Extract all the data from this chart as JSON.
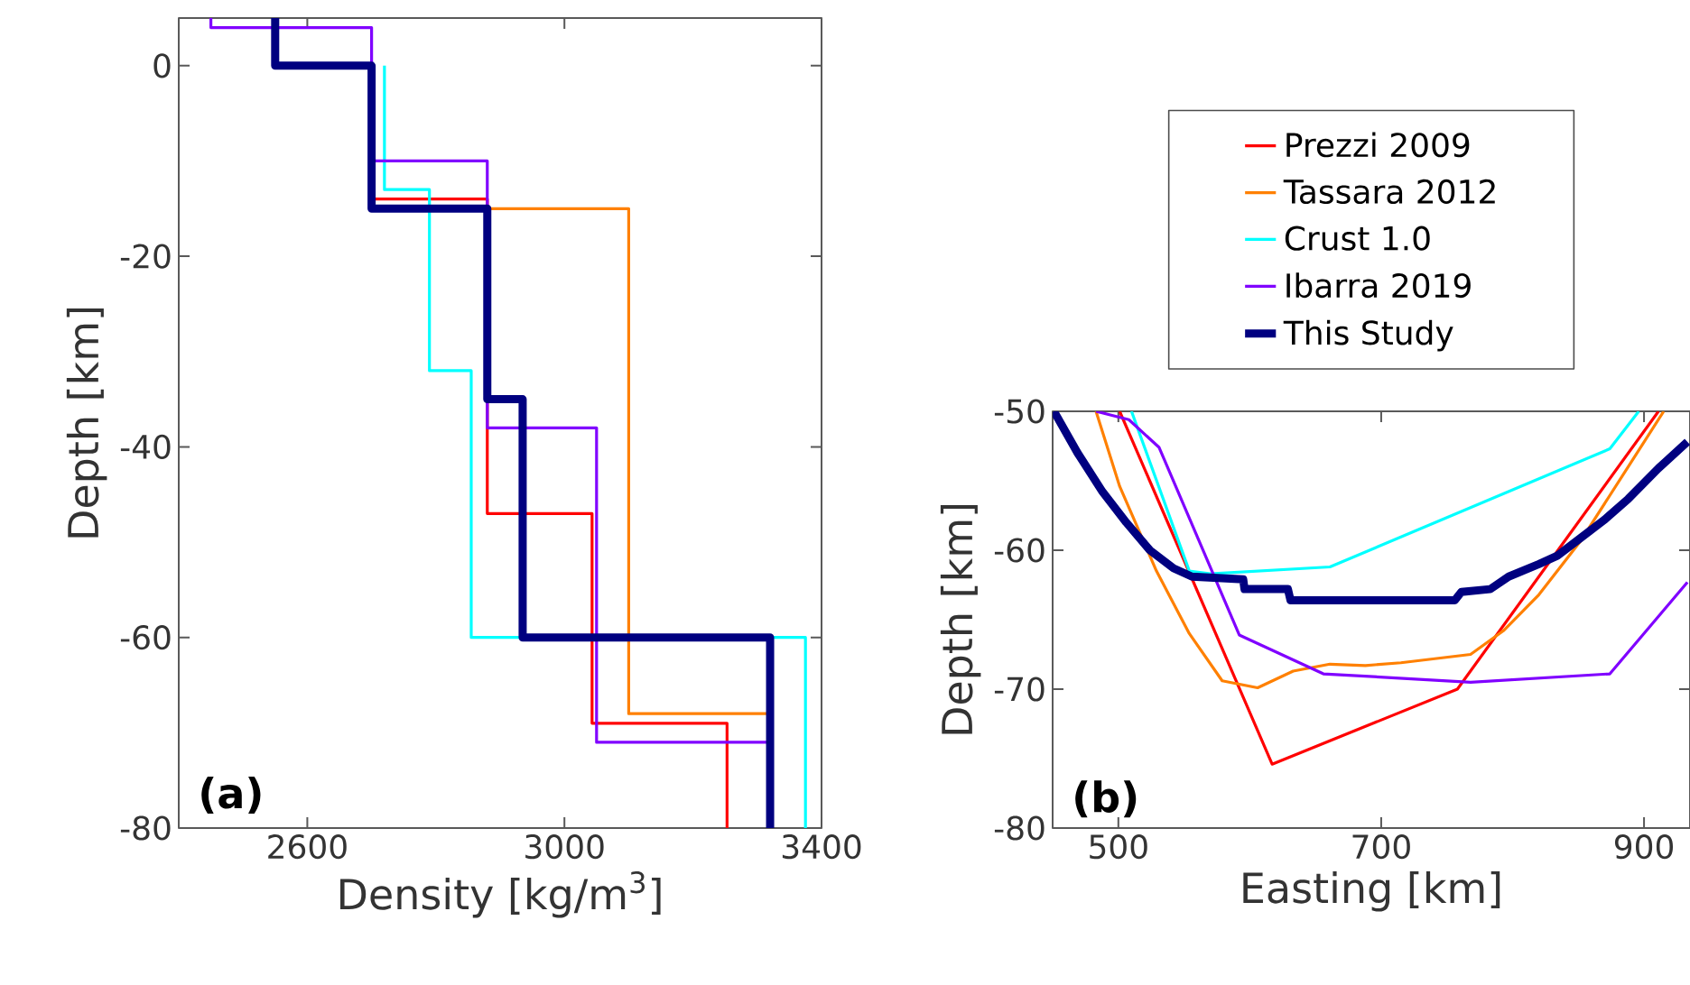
{
  "chart_data": [
    {
      "type": "line",
      "xlabel": "Density [kg/m$^{3}$]",
      "ylabel": "Depth [km]",
      "xlim": [
        2400,
        3400
      ],
      "ylim": [
        -80,
        5
      ],
      "xticks": [
        2600,
        3000,
        3400
      ],
      "yticks": [
        -80,
        -60,
        -40,
        -20,
        0
      ],
      "annotations": [
        "(a)"
      ],
      "grid": false,
      "legend": false,
      "marker": "none",
      "line_style": "solid",
      "series": [
        {
          "color": "#ff0000",
          "x": [
            2700,
            2880,
            2880,
            3043,
            3043,
            3253,
            3253
          ],
          "values": [
            -14,
            -14,
            -47,
            -47,
            -69,
            -69,
            -80
          ]
        },
        {
          "color": "#ff8000",
          "x": [
            2880,
            3100,
            3100,
            3320
          ],
          "values": [
            -15,
            -15,
            -68,
            -68
          ]
        },
        {
          "color": "#00ffff",
          "x": [
            2720,
            2720,
            2790,
            2790,
            2855,
            2855,
            3375,
            3375
          ],
          "values": [
            0,
            -13,
            -13,
            -32,
            -32,
            -60,
            -60,
            -80
          ]
        },
        {
          "color": "#8000ff",
          "x": [
            2450,
            2450,
            2700,
            2700,
            2880,
            2880,
            3050,
            3050,
            3320
          ],
          "values": [
            5,
            4,
            4,
            -10,
            -10,
            -38,
            -38,
            -71,
            -71
          ]
        },
        {
          "color": "#000080",
          "x": [
            2550,
            2550,
            2700,
            2700,
            2880,
            2880,
            2935,
            2935,
            3320,
            3320
          ],
          "values": [
            5,
            0,
            0,
            -15,
            -15,
            -35,
            -35,
            -60,
            -60,
            -80
          ]
        }
      ]
    },
    {
      "type": "line",
      "xlabel": "Easting [km]",
      "ylabel": "Depth [km]",
      "xlim": [
        450,
        935
      ],
      "ylim": [
        -80,
        -50
      ],
      "xticks": [
        500,
        700,
        900
      ],
      "yticks": [
        -80,
        -70,
        -60,
        -50
      ],
      "annotations": [
        "(b)"
      ],
      "grid": false,
      "legend": "top",
      "marker": "none",
      "line_style": "solid",
      "series": [
        {
          "name": "Prezzi 2009",
          "color": "#ff0000",
          "x": [
            501,
            617,
            758,
            911
          ],
          "values": [
            -50,
            -75.4,
            -70.0,
            -50
          ]
        },
        {
          "name": "Tassara 2012",
          "color": "#ff8000",
          "x": [
            483,
            501,
            529,
            554,
            579,
            606,
            633,
            661,
            688,
            715,
            768,
            793,
            820,
            852,
            915
          ],
          "values": [
            -50,
            -55.4,
            -61.5,
            -66,
            -69.4,
            -69.9,
            -68.7,
            -68.2,
            -68.3,
            -68.1,
            -67.5,
            -65.8,
            -63.2,
            -59.3,
            -50
          ]
        },
        {
          "name": "Crust 1.0",
          "color": "#00ffff",
          "x": [
            510,
            554,
            570,
            661,
            874,
            896
          ],
          "values": [
            -50,
            -61.5,
            -61.7,
            -61.2,
            -52.7,
            -50
          ]
        },
        {
          "name": "Ibarra 2019",
          "color": "#8000ff",
          "x": [
            483,
            508,
            531,
            592,
            656,
            768,
            874,
            933
          ],
          "values": [
            -50,
            -50.6,
            -52.6,
            -66.1,
            -68.9,
            -69.5,
            -68.9,
            -62.3
          ]
        },
        {
          "name": "This Study",
          "color": "#000080",
          "x": [
            451,
            469,
            488,
            506,
            524,
            542,
            556,
            595,
            596,
            629,
            631,
            756,
            761,
            783,
            797,
            820,
            834,
            852,
            870,
            888,
            911,
            933
          ],
          "values": [
            -50,
            -53.0,
            -55.8,
            -58,
            -60,
            -61.3,
            -61.9,
            -62.1,
            -62.8,
            -62.8,
            -63.6,
            -63.6,
            -63,
            -62.8,
            -61.9,
            -61,
            -60.4,
            -59.1,
            -57.8,
            -56.3,
            -54.1,
            -52.2
          ]
        }
      ]
    }
  ]
}
